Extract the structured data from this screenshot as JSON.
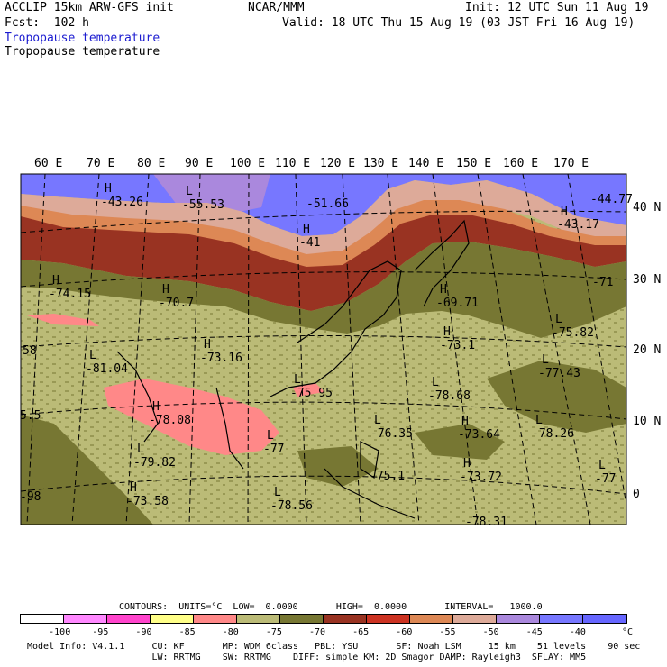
{
  "header": {
    "left1": "ACCLIP 15km ARW-GFS init",
    "left2": "Fcst:  102 h",
    "center": "NCAR/MMM",
    "init": "Init: 12 UTC Sun 11 Aug 19",
    "valid": "Valid: 18 UTC Thu 15 Aug 19 (03 JST Fri 16 Aug 19)",
    "field_title_blue": "Tropopause temperature",
    "field_title_black": "Tropopause temperature"
  },
  "map": {
    "lon_labels": [
      "60 E",
      "70 E",
      "80 E",
      "90 E",
      "100 E",
      "110 E",
      "120 E",
      "130 E",
      "140 E",
      "150 E",
      "160 E",
      "170 E"
    ],
    "lat_labels": [
      "40 N",
      "30 N",
      "20 N",
      "10 N",
      "0"
    ],
    "extrema": [
      {
        "type": "H",
        "value": "-43.26"
      },
      {
        "type": "L",
        "value": "-55.53"
      },
      {
        "type": "",
        "value": "-51.66"
      },
      {
        "type": "H",
        "value": "-41"
      },
      {
        "type": "",
        "value": "-44.77"
      },
      {
        "type": "H",
        "value": "-43.17"
      },
      {
        "type": "",
        "value": "-71"
      },
      {
        "type": "H",
        "value": "-74.15"
      },
      {
        "type": "H",
        "value": "-70.7"
      },
      {
        "type": "H",
        "value": "-69.71"
      },
      {
        "type": "",
        "value": "58"
      },
      {
        "type": "L",
        "value": "-81.04"
      },
      {
        "type": "H",
        "value": "-73.16"
      },
      {
        "type": "H",
        "value": "-73.1"
      },
      {
        "type": "L",
        "value": "-75.82"
      },
      {
        "type": "L",
        "value": "-77.43"
      },
      {
        "type": "L",
        "value": "-75.95"
      },
      {
        "type": "L",
        "value": "-78.68"
      },
      {
        "type": "H",
        "value": "-78.08"
      },
      {
        "type": "",
        "value": "5.5"
      },
      {
        "type": "L",
        "value": "-76.35"
      },
      {
        "type": "H",
        "value": "-73.64"
      },
      {
        "type": "L",
        "value": "-78.26"
      },
      {
        "type": "L",
        "value": "-77"
      },
      {
        "type": "L",
        "value": "-79.82"
      },
      {
        "type": "H",
        "value": "-73.72"
      },
      {
        "type": "",
        "value": "-98"
      },
      {
        "type": "H",
        "value": "-73.58"
      },
      {
        "type": "L",
        "value": "-78.56"
      },
      {
        "type": "",
        "value": "-75.1"
      },
      {
        "type": "L",
        "value": "-77"
      },
      {
        "type": "",
        "value": "-78.31"
      }
    ]
  },
  "contours": {
    "line": "CONTOURS:  UNITS=°C  LOW=  0.0000       HIGH=  0.0000       INTERVAL=   1000.0"
  },
  "colorbar": {
    "colors": [
      "#ffffff",
      "#ff88ff",
      "#ff44cc",
      "#ffff88",
      "#ff8888",
      "#bbbb77",
      "#777733",
      "#993322",
      "#cc3322",
      "#dd8855",
      "#ddaa99",
      "#aa88dd",
      "#7777ff",
      "#6666ff"
    ],
    "tick_labels": [
      "-100",
      "-95",
      "-90",
      "-85",
      "-80",
      "-75",
      "-70",
      "-65",
      "-60",
      "-55",
      "-50",
      "-45",
      "-40"
    ],
    "unit": "°C"
  },
  "footer": {
    "line1": "Model Info: V4.1.1     CU: KF       MP: WDM 6class   PBL: YSU       SF: Noah LSM     15 km    51 levels    90 sec",
    "line2": "                       LW: RRTMG    SW: RRTMG    DIFF: simple KM: 2D Smagor DAMP: Rayleigh3  SFLAY: MM5"
  }
}
